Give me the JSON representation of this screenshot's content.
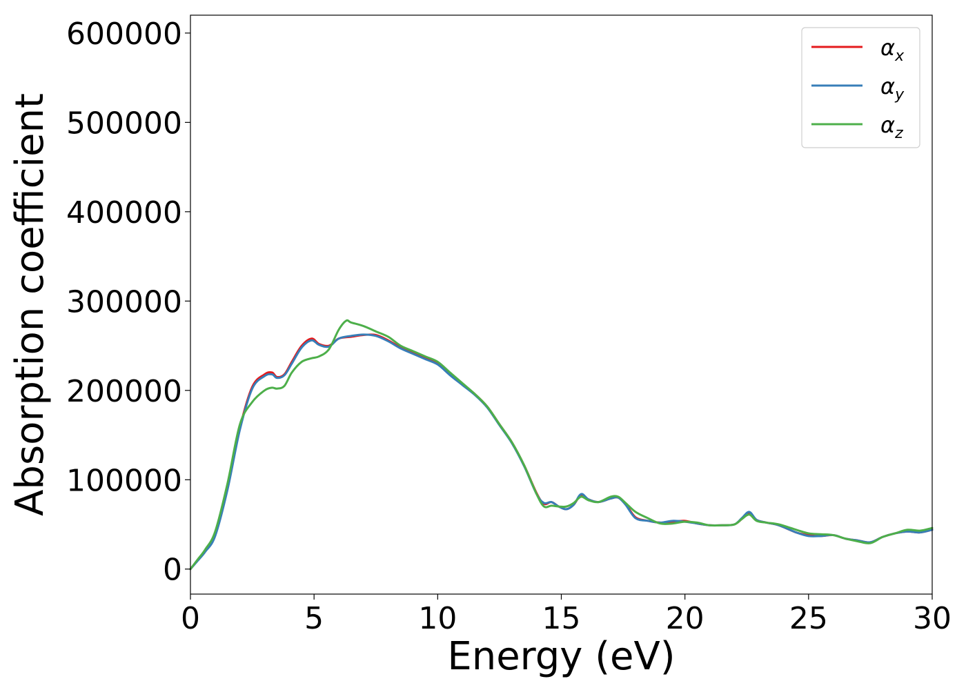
{
  "chart_data": {
    "type": "line",
    "xlabel": "Energy (eV)",
    "ylabel": "Absorption coefficient",
    "xlim": [
      0,
      30
    ],
    "ylim": [
      -28000,
      620000
    ],
    "xticks": [
      0,
      5,
      10,
      15,
      20,
      25,
      30
    ],
    "xtick_labels": [
      "0",
      "5",
      "10",
      "15",
      "20",
      "25",
      "30"
    ],
    "yticks": [
      0,
      100000,
      200000,
      300000,
      400000,
      500000,
      600000
    ],
    "ytick_labels": [
      "0",
      "100000",
      "200000",
      "300000",
      "400000",
      "500000",
      "600000"
    ],
    "grid": false,
    "legend_position": "top-right",
    "series": [
      {
        "name": "α",
        "subscript": "x",
        "color": "#e41a1c",
        "x": [
          0,
          0.3,
          0.6,
          1.0,
          1.5,
          2.0,
          2.5,
          3.0,
          3.3,
          3.5,
          3.8,
          4.1,
          4.5,
          4.9,
          5.2,
          5.6,
          6.0,
          6.5,
          7.0,
          7.5,
          8.0,
          8.5,
          9.0,
          9.5,
          10.0,
          10.5,
          11.0,
          11.5,
          12.0,
          12.5,
          13.0,
          13.5,
          14.0,
          14.3,
          14.6,
          14.9,
          15.2,
          15.5,
          15.8,
          16.1,
          16.5,
          17.0,
          17.3,
          17.6,
          18.0,
          18.5,
          19.0,
          19.5,
          20.0,
          20.5,
          21.0,
          21.5,
          22.0,
          22.3,
          22.6,
          22.9,
          23.3,
          23.8,
          24.5,
          25.0,
          25.5,
          26.0,
          26.5,
          27.0,
          27.5,
          28.0,
          28.5,
          29.0,
          29.5,
          30.0
        ],
        "values": [
          0,
          10000,
          20000,
          38000,
          90000,
          158000,
          204000,
          218000,
          220000,
          215000,
          218000,
          232000,
          250000,
          258000,
          252000,
          250000,
          258000,
          260000,
          262000,
          262000,
          256000,
          248000,
          242000,
          236000,
          230000,
          218000,
          207000,
          196000,
          182000,
          162000,
          142000,
          116000,
          85000,
          73000,
          75000,
          70000,
          67000,
          72000,
          83000,
          78000,
          75000,
          79000,
          80000,
          73000,
          58000,
          54000,
          52000,
          53000,
          54000,
          51000,
          49000,
          49000,
          50000,
          56000,
          63000,
          55000,
          52000,
          49000,
          41000,
          38000,
          37000,
          38000,
          34000,
          32000,
          30000,
          36000,
          40000,
          42000,
          41000,
          44000
        ]
      },
      {
        "name": "α",
        "subscript": "y",
        "color": "#377eb8",
        "x": [
          0,
          0.3,
          0.6,
          1.0,
          1.5,
          2.0,
          2.5,
          3.0,
          3.3,
          3.5,
          3.8,
          4.1,
          4.5,
          4.9,
          5.2,
          5.6,
          6.0,
          6.5,
          7.0,
          7.5,
          8.0,
          8.5,
          9.0,
          9.5,
          10.0,
          10.5,
          11.0,
          11.5,
          12.0,
          12.5,
          13.0,
          13.5,
          14.0,
          14.3,
          14.6,
          14.9,
          15.2,
          15.5,
          15.8,
          16.1,
          16.5,
          17.0,
          17.3,
          17.6,
          18.0,
          18.5,
          19.0,
          19.5,
          20.0,
          20.5,
          21.0,
          21.5,
          22.0,
          22.3,
          22.6,
          22.9,
          23.3,
          23.8,
          24.5,
          25.0,
          25.5,
          26.0,
          26.5,
          27.0,
          27.5,
          28.0,
          28.5,
          29.0,
          29.5,
          30.0
        ],
        "values": [
          0,
          9500,
          19500,
          37000,
          89000,
          156000,
          202000,
          216000,
          218000,
          214000,
          217000,
          230000,
          248000,
          256000,
          251000,
          249000,
          258000,
          261000,
          262500,
          261000,
          255000,
          247000,
          241000,
          235000,
          229000,
          217000,
          206000,
          195000,
          181000,
          161000,
          141000,
          115000,
          84000,
          74000,
          75000,
          70000,
          67000,
          72000,
          84000,
          78000,
          75000,
          79000,
          80000,
          72000,
          57000,
          54000,
          52000,
          54000,
          53000,
          51000,
          49000,
          49000,
          50000,
          57000,
          64000,
          55000,
          52000,
          49000,
          41000,
          37000,
          37000,
          38000,
          34000,
          32000,
          30000,
          36000,
          40000,
          42000,
          41000,
          44000
        ]
      },
      {
        "name": "α",
        "subscript": "z",
        "color": "#4daf4a",
        "x": [
          0,
          0.3,
          0.6,
          1.0,
          1.5,
          2.0,
          2.5,
          3.0,
          3.3,
          3.5,
          3.8,
          4.1,
          4.5,
          4.9,
          5.2,
          5.6,
          6.0,
          6.3,
          6.5,
          7.0,
          7.5,
          8.0,
          8.5,
          9.0,
          9.5,
          10.0,
          10.5,
          11.0,
          11.5,
          12.0,
          12.5,
          13.0,
          13.5,
          14.0,
          14.3,
          14.6,
          14.9,
          15.2,
          15.5,
          15.8,
          16.1,
          16.5,
          17.0,
          17.3,
          17.6,
          18.0,
          18.5,
          19.0,
          19.5,
          20.0,
          20.5,
          21.0,
          21.5,
          22.0,
          22.3,
          22.6,
          22.9,
          23.3,
          23.8,
          24.5,
          25.0,
          25.5,
          26.0,
          26.5,
          27.0,
          27.5,
          28.0,
          28.5,
          29.0,
          29.5,
          30.0
        ],
        "values": [
          0,
          11000,
          22000,
          42000,
          96000,
          162000,
          187000,
          200000,
          203000,
          202000,
          205000,
          220000,
          232000,
          236000,
          238000,
          246000,
          268000,
          278000,
          276000,
          272000,
          266000,
          260000,
          250000,
          244000,
          238000,
          232000,
          220000,
          208000,
          196000,
          182000,
          162000,
          142000,
          116000,
          84000,
          70000,
          71000,
          70000,
          70000,
          74000,
          81000,
          77000,
          75000,
          81000,
          81000,
          74000,
          64000,
          57000,
          51000,
          51000,
          53000,
          52000,
          49000,
          49000,
          50000,
          56000,
          61000,
          54000,
          52000,
          50000,
          44000,
          40000,
          39000,
          38000,
          34000,
          31000,
          29000,
          36000,
          40000,
          44000,
          43000,
          46000
        ]
      }
    ]
  }
}
